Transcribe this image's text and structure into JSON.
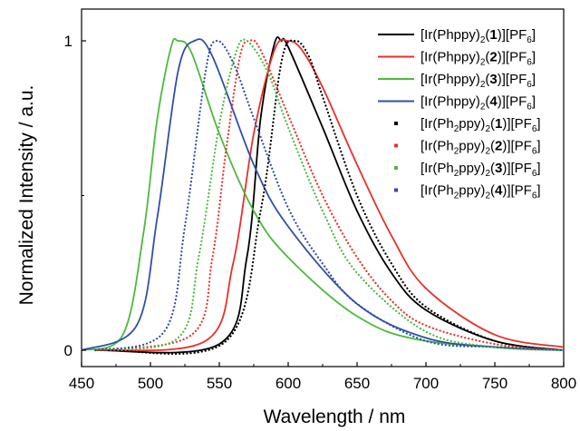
{
  "chart_data": {
    "type": "line",
    "title": "",
    "xlabel": "Wavelength / nm",
    "ylabel": "Normalized Intensity / a.u.",
    "xlim": [
      450,
      800
    ],
    "ylim": [
      0,
      1
    ],
    "xticks": [
      450,
      500,
      550,
      600,
      650,
      700,
      750,
      800
    ],
    "yticks": [
      0,
      1
    ],
    "legend_position": "top-right",
    "grid": false,
    "series": [
      {
        "name_parts": [
          "[Ir(Phppy)",
          "2",
          "(",
          "1",
          ")][PF",
          "6",
          "]"
        ],
        "style": "solid",
        "color": "#000000",
        "x": [
          460,
          550,
          570,
          580,
          590,
          595,
          600,
          625,
          650,
          675,
          700,
          750,
          800
        ],
        "y": [
          0,
          0.02,
          0.3,
          0.75,
          0.99,
          1.0,
          0.98,
          0.72,
          0.45,
          0.25,
          0.13,
          0.03,
          0.0
        ]
      },
      {
        "name_parts": [
          "[Ir(Phppy)",
          "2",
          "(",
          "2",
          ")][PF",
          "6",
          "]"
        ],
        "style": "solid",
        "color": "#e8302a",
        "x": [
          460,
          540,
          560,
          575,
          590,
          600,
          610,
          625,
          650,
          675,
          700,
          750,
          800
        ],
        "y": [
          0,
          0.03,
          0.28,
          0.7,
          0.97,
          1.0,
          0.97,
          0.85,
          0.6,
          0.37,
          0.2,
          0.05,
          0.01
        ]
      },
      {
        "name_parts": [
          "[Ir(Phppy)",
          "2",
          "(",
          "3",
          ")][PF",
          "6",
          "]"
        ],
        "style": "solid",
        "color": "#4cba3c",
        "x": [
          450,
          480,
          495,
          505,
          515,
          520,
          530,
          550,
          575,
          600,
          650,
          700,
          800
        ],
        "y": [
          0,
          0.05,
          0.38,
          0.75,
          0.98,
          1.0,
          0.96,
          0.7,
          0.45,
          0.3,
          0.11,
          0.03,
          0.0
        ]
      },
      {
        "name_parts": [
          "[Ir(Phppy)",
          "2",
          "(",
          "4",
          ")][PF",
          "6",
          "]"
        ],
        "style": "solid",
        "color": "#2f4fa8",
        "x": [
          450,
          490,
          505,
          520,
          532,
          545,
          575,
          600,
          650,
          700,
          750,
          800
        ],
        "y": [
          0,
          0.08,
          0.43,
          0.9,
          1.0,
          0.95,
          0.6,
          0.4,
          0.15,
          0.04,
          0.01,
          0.0
        ]
      },
      {
        "name_parts": [
          "[Ir(Ph",
          "2",
          "ppy)",
          "2",
          "(",
          "1",
          ")][PF",
          "6",
          "]"
        ],
        "style": "dotted",
        "color": "#000000",
        "x": [
          470,
          555,
          580,
          595,
          605,
          615,
          625,
          650,
          675,
          700,
          750,
          800
        ],
        "y": [
          0,
          0.03,
          0.45,
          0.93,
          1.0,
          0.95,
          0.82,
          0.5,
          0.28,
          0.14,
          0.03,
          0.0
        ]
      },
      {
        "name_parts": [
          "[Ir(Ph",
          "2",
          "ppy)",
          "2",
          "(",
          "2",
          ")][PF",
          "6",
          "]"
        ],
        "style": "dotted",
        "color": "#e8302a",
        "x": [
          460,
          530,
          545,
          555,
          565,
          572,
          580,
          600,
          625,
          650,
          675,
          700,
          750,
          800
        ],
        "y": [
          0,
          0.05,
          0.3,
          0.65,
          0.95,
          1.0,
          0.97,
          0.76,
          0.5,
          0.3,
          0.16,
          0.08,
          0.02,
          0.0
        ]
      },
      {
        "name_parts": [
          "[Ir(Ph",
          "2",
          "ppy)",
          "2",
          "(",
          "3",
          ")][PF",
          "6",
          "]"
        ],
        "style": "dotted",
        "color": "#4cba3c",
        "x": [
          460,
          520,
          535,
          550,
          562,
          570,
          585,
          600,
          625,
          650,
          700,
          750,
          800
        ],
        "y": [
          0,
          0.04,
          0.3,
          0.73,
          0.96,
          1.0,
          0.9,
          0.72,
          0.45,
          0.25,
          0.06,
          0.01,
          0.0
        ]
      },
      {
        "name_parts": [
          "[Ir(Ph",
          "2",
          "ppy)",
          "2",
          "(",
          "4",
          ")][PF",
          "6",
          "]"
        ],
        "style": "dotted",
        "color": "#2f4fa8",
        "x": [
          460,
          510,
          525,
          540,
          548,
          560,
          575,
          600,
          625,
          650,
          700,
          750,
          800
        ],
        "y": [
          0,
          0.06,
          0.4,
          0.9,
          1.0,
          0.93,
          0.75,
          0.46,
          0.28,
          0.15,
          0.03,
          0.01,
          0.0
        ]
      }
    ]
  }
}
